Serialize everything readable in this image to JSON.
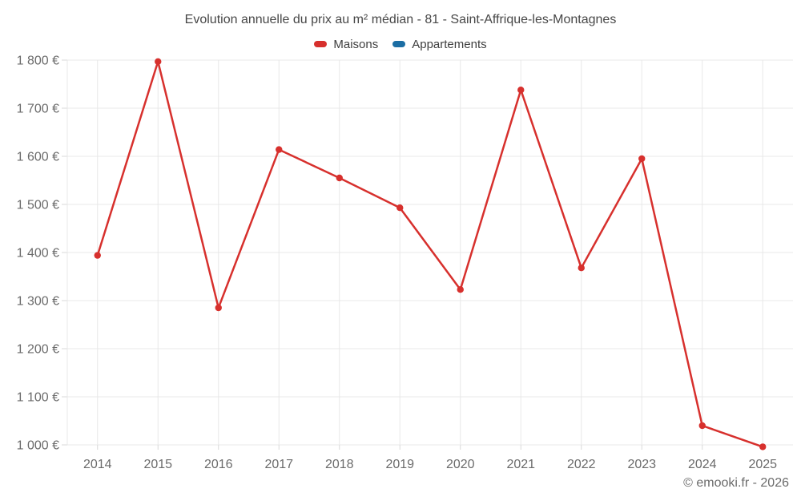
{
  "chart_data": {
    "type": "line",
    "title": "Evolution annuelle du prix au m² médian - 81 - Saint-Affrique-les-Montagnes",
    "categories": [
      "2014",
      "2015",
      "2016",
      "2017",
      "2018",
      "2019",
      "2020",
      "2021",
      "2022",
      "2023",
      "2024",
      "2025"
    ],
    "series": [
      {
        "name": "Maisons",
        "color": "#d7302d",
        "values": [
          1394,
          1797,
          1285,
          1614,
          1555,
          1493,
          1323,
          1738,
          1368,
          1595,
          1040,
          996
        ]
      },
      {
        "name": "Appartements",
        "color": "#1c6ea4",
        "values": []
      }
    ],
    "xlabel": "",
    "ylabel": "",
    "ylim": [
      1000,
      1800
    ],
    "ytick_step": 100,
    "ytick_labels": [
      "1 000 €",
      "1 100 €",
      "1 200 €",
      "1 300 €",
      "1 400 €",
      "1 500 €",
      "1 600 €",
      "1 700 €",
      "1 800 €"
    ],
    "grid": true,
    "legend_position": "top"
  },
  "footer": {
    "credit": "© emooki.fr - 2026"
  },
  "colors": {
    "background": "#ffffff",
    "gridline": "#e8e8e8",
    "tick": "#d9d9d9",
    "axis_text": "#6b6b6b",
    "title_text": "#474747",
    "maisons": "#d7302d",
    "appartements": "#1c6ea4"
  }
}
